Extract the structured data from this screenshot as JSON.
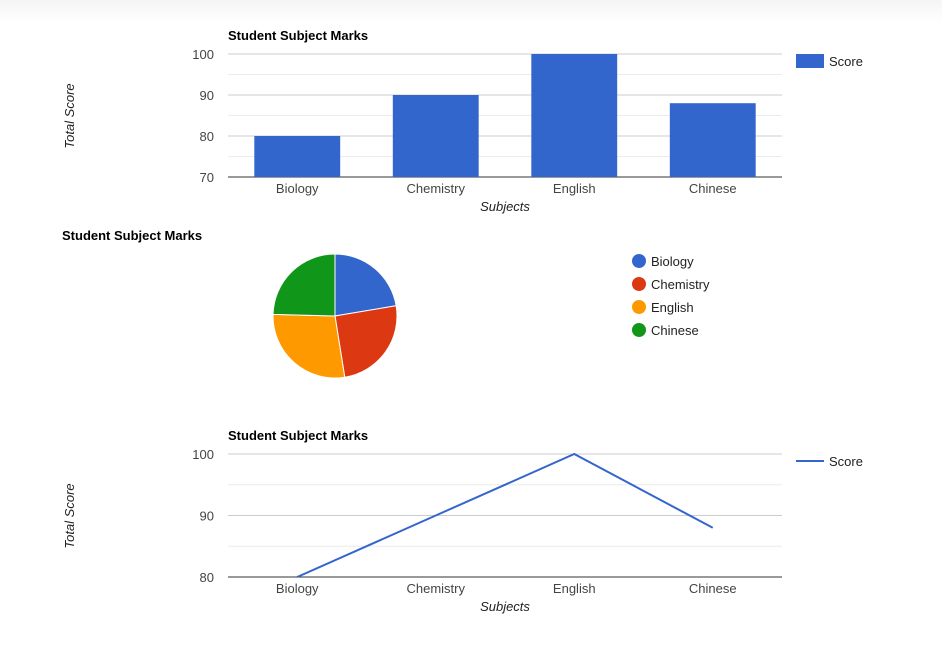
{
  "chart_data": [
    {
      "type": "bar",
      "title": "Student Subject Marks",
      "xlabel": "Subjects",
      "ylabel": "Total Score",
      "categories": [
        "Biology",
        "Chemistry",
        "English",
        "Chinese"
      ],
      "series": [
        {
          "name": "Score",
          "values": [
            80,
            90,
            100,
            88
          ]
        }
      ],
      "ylim": [
        70,
        100
      ],
      "yticks": [
        70,
        80,
        90,
        100
      ],
      "grid": true,
      "legend_position": "right",
      "color": "#3366cc"
    },
    {
      "type": "pie",
      "title": "Student Subject Marks",
      "labels": [
        "Biology",
        "Chemistry",
        "English",
        "Chinese"
      ],
      "values": [
        80,
        90,
        100,
        88
      ],
      "colors": [
        "#3366cc",
        "#dc3912",
        "#ff9900",
        "#109618"
      ],
      "legend_position": "right"
    },
    {
      "type": "line",
      "title": "Student Subject Marks",
      "xlabel": "Subjects",
      "ylabel": "Total Score",
      "categories": [
        "Biology",
        "Chemistry",
        "English",
        "Chinese"
      ],
      "series": [
        {
          "name": "Score",
          "values": [
            80,
            90,
            100,
            88
          ]
        }
      ],
      "ylim": [
        80,
        100
      ],
      "yticks": [
        80,
        90,
        100
      ],
      "grid": true,
      "legend_position": "right",
      "color": "#3366cc"
    }
  ]
}
